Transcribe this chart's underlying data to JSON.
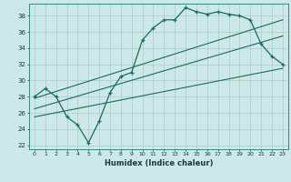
{
  "xlabel": "Humidex (Indice chaleur)",
  "bg_color": "#cce8e8",
  "line_color": "#1a6b5a",
  "grid_color": "#aacccc",
  "xlim": [
    -0.5,
    23.5
  ],
  "ylim": [
    21.5,
    39.5
  ],
  "xticks": [
    0,
    1,
    2,
    3,
    4,
    5,
    6,
    7,
    8,
    9,
    10,
    11,
    12,
    13,
    14,
    15,
    16,
    17,
    18,
    19,
    20,
    21,
    22,
    23
  ],
  "yticks": [
    22,
    24,
    26,
    28,
    30,
    32,
    34,
    36,
    38
  ],
  "main_line_x": [
    0,
    1,
    2,
    3,
    4,
    5,
    6,
    7,
    8,
    9,
    10,
    11,
    12,
    13,
    14,
    15,
    16,
    17,
    18,
    19,
    20,
    21,
    22,
    23
  ],
  "main_line_y": [
    28,
    29,
    28,
    25.5,
    24.5,
    22.3,
    25,
    28.5,
    30.5,
    31,
    35,
    36.5,
    37.5,
    37.5,
    39,
    38.5,
    38.2,
    38.5,
    38.2,
    38,
    37.5,
    34.5,
    33,
    32
  ],
  "line1_x": [
    0,
    23
  ],
  "line1_y": [
    27.8,
    37.5
  ],
  "line2_x": [
    0,
    23
  ],
  "line2_y": [
    26.5,
    35.5
  ],
  "line3_x": [
    0,
    23
  ],
  "line3_y": [
    25.5,
    31.5
  ]
}
